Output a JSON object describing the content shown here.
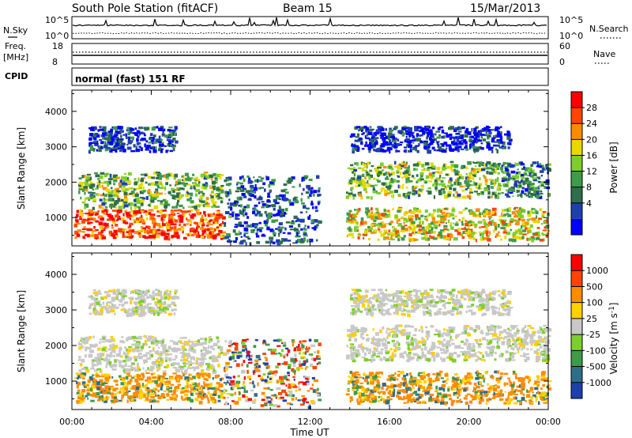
{
  "header": {
    "station": "South Pole Station (fitACF)",
    "beam": "Beam 15",
    "date": "15/Mar/2013"
  },
  "top_panels": {
    "noise": {
      "left_label": "N.Sky",
      "left_ticks": [
        "10^5",
        "10^0"
      ],
      "right_label": "N.Search",
      "right_ticks": [
        "10^5",
        "10^0"
      ]
    },
    "freq": {
      "left_label_1": "Freq.",
      "left_label_2": "[MHz]",
      "left_ticks": [
        "18",
        "8"
      ],
      "right_label": "Nave",
      "right_ticks": [
        "60",
        "0"
      ]
    },
    "cpid": {
      "label": "CPID",
      "text": "normal (fast) 151 RF"
    }
  },
  "chart_data": [
    {
      "type": "heatmap",
      "parameter": "Power",
      "ylabel": "Slant Range [km]",
      "ylim": [
        200,
        4600
      ],
      "yticks": [
        1000,
        2000,
        3000,
        4000
      ],
      "xlim": [
        0,
        24
      ],
      "colorbar_label": "Power [dB]",
      "colorbar_ticks": [
        "28",
        "24",
        "20",
        "16",
        "12",
        "8",
        "4"
      ],
      "colorbar_colors": [
        "#0000ff",
        "#1f3fb0",
        "#2e6e4a",
        "#3f9a4a",
        "#7ccf2a",
        "#e8d800",
        "#ff8c00",
        "#ff4500",
        "#ff0000"
      ],
      "regions": [
        {
          "x": [
            0.1,
            7.6
          ],
          "y": [
            450,
            1250
          ],
          "level": 0.85
        },
        {
          "x": [
            0.3,
            7.5
          ],
          "y": [
            1300,
            2300
          ],
          "level": 0.45
        },
        {
          "x": [
            0.8,
            5.2
          ],
          "y": [
            2900,
            3600
          ],
          "level": 0.15
        },
        {
          "x": [
            7.6,
            12.4
          ],
          "y": [
            300,
            2200
          ],
          "level": 0.2
        },
        {
          "x": [
            13.8,
            24
          ],
          "y": [
            400,
            1300
          ],
          "level": 0.6
        },
        {
          "x": [
            13.8,
            21.5
          ],
          "y": [
            1600,
            2600
          ],
          "level": 0.45
        },
        {
          "x": [
            21.5,
            24
          ],
          "y": [
            1600,
            2600
          ],
          "level": 0.3
        },
        {
          "x": [
            14,
            22
          ],
          "y": [
            2900,
            3600
          ],
          "level": 0.1
        }
      ]
    },
    {
      "type": "heatmap",
      "parameter": "Velocity",
      "ylabel": "Slant Range [km]",
      "ylim": [
        200,
        4600
      ],
      "yticks": [
        1000,
        2000,
        3000,
        4000
      ],
      "xlim": [
        0,
        24
      ],
      "xticks": [
        "00:00",
        "04:00",
        "08:00",
        "12:00",
        "16:00",
        "20:00",
        "00:00"
      ],
      "xlabel": "Time UT",
      "colorbar_label": "Velocity [m s^-1]",
      "colorbar_ticks": [
        "1000",
        "500",
        "100",
        "25",
        "-25",
        "-100",
        "-500",
        "-1000"
      ],
      "colorbar_colors": [
        "#1f3fb0",
        "#2e6e8a",
        "#3f9a4a",
        "#7ccf2a",
        "#c8c8c8",
        "#ffd000",
        "#ff8c00",
        "#ff4500",
        "#ff0000"
      ],
      "regions": [
        {
          "x": [
            0.1,
            7.6
          ],
          "y": [
            450,
            1250
          ],
          "vel": "toward"
        },
        {
          "x": [
            0.3,
            7.5
          ],
          "y": [
            1300,
            2300
          ],
          "vel": "low"
        },
        {
          "x": [
            0.8,
            5.2
          ],
          "y": [
            2900,
            3600
          ],
          "vel": "low"
        },
        {
          "x": [
            7.6,
            12.4
          ],
          "y": [
            300,
            2200
          ],
          "vel": "mixed"
        },
        {
          "x": [
            13.8,
            24
          ],
          "y": [
            400,
            1300
          ],
          "vel": "toward"
        },
        {
          "x": [
            13.8,
            24
          ],
          "y": [
            1600,
            2600
          ],
          "vel": "low"
        },
        {
          "x": [
            14,
            22
          ],
          "y": [
            2900,
            3600
          ],
          "vel": "low"
        }
      ]
    }
  ]
}
